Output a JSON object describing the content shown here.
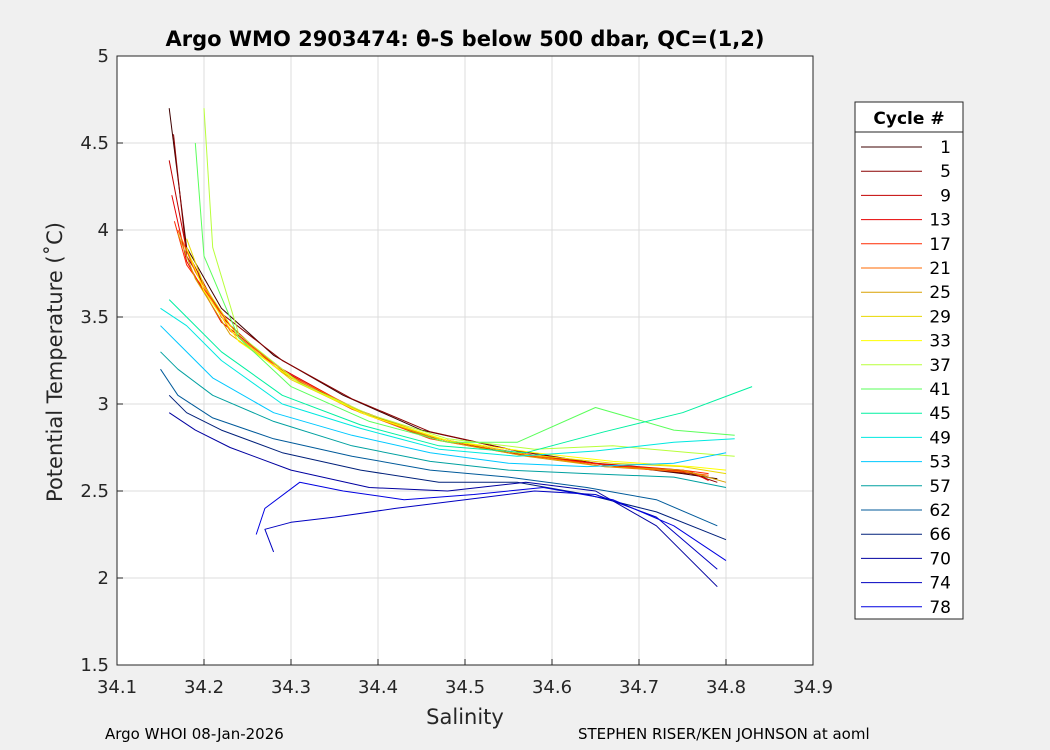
{
  "chart_data": {
    "type": "line",
    "title": "Argo WMO 2903474: θ-S below 500 dbar,  QC=(1,2)",
    "xlabel": "Salinity",
    "ylabel": "Potential Temperature (˚C)",
    "xlim": [
      34.1,
      34.9
    ],
    "ylim": [
      1.5,
      5.0
    ],
    "xticks": [
      "34.1",
      "34.2",
      "34.3",
      "34.4",
      "34.5",
      "34.6",
      "34.7",
      "34.8",
      "34.9"
    ],
    "yticks": [
      "1.5",
      "2",
      "2.5",
      "3",
      "3.5",
      "4",
      "4.5",
      "5"
    ],
    "grid": true,
    "legend": {
      "title": "Cycle #",
      "location": "right-outside",
      "entries": [
        "1",
        "5",
        "9",
        "13",
        "17",
        "21",
        "25",
        "29",
        "33",
        "37",
        "41",
        "45",
        "49",
        "53",
        "57",
        "62",
        "66",
        "70",
        "74",
        "78"
      ],
      "colors": [
        "#3d0000",
        "#8a0000",
        "#c20000",
        "#e60000",
        "#ff2a00",
        "#ff6a00",
        "#d9a000",
        "#e8d800",
        "#ffff00",
        "#b8ff3a",
        "#5aff5a",
        "#00f0a0",
        "#00e8e0",
        "#00c8ff",
        "#00a0a0",
        "#005a9a",
        "#00207a",
        "#0000a0",
        "#0000c0",
        "#0000e0"
      ]
    },
    "series": [
      {
        "name": "1",
        "x": [
          34.16,
          34.18,
          34.22,
          34.28,
          34.36,
          34.45,
          34.55,
          34.65,
          34.75,
          34.79
        ],
        "y": [
          4.7,
          3.9,
          3.55,
          3.28,
          3.05,
          2.85,
          2.74,
          2.66,
          2.6,
          2.57
        ]
      },
      {
        "name": "5",
        "x": [
          34.165,
          34.18,
          34.22,
          34.29,
          34.37,
          34.46,
          34.56,
          34.66,
          34.76,
          34.79
        ],
        "y": [
          4.55,
          3.85,
          3.52,
          3.25,
          3.03,
          2.84,
          2.73,
          2.65,
          2.6,
          2.55
        ]
      },
      {
        "name": "9",
        "x": [
          34.16,
          34.18,
          34.22,
          34.28,
          34.36,
          34.45,
          34.55,
          34.65,
          34.75,
          34.78
        ],
        "y": [
          4.4,
          3.88,
          3.5,
          3.22,
          3.0,
          2.82,
          2.72,
          2.66,
          2.62,
          2.58
        ]
      },
      {
        "name": "13",
        "x": [
          34.163,
          34.18,
          34.22,
          34.29,
          34.37,
          34.46,
          34.56,
          34.66,
          34.76,
          34.78
        ],
        "y": [
          4.2,
          3.82,
          3.47,
          3.2,
          2.98,
          2.81,
          2.72,
          2.65,
          2.61,
          2.56
        ]
      },
      {
        "name": "17",
        "x": [
          34.166,
          34.18,
          34.23,
          34.29,
          34.37,
          34.46,
          34.56,
          34.66,
          34.75,
          34.78
        ],
        "y": [
          4.05,
          3.8,
          3.45,
          3.18,
          2.97,
          2.8,
          2.71,
          2.65,
          2.62,
          2.6
        ]
      },
      {
        "name": "21",
        "x": [
          34.17,
          34.19,
          34.23,
          34.3,
          34.38,
          34.47,
          34.57,
          34.66,
          34.75,
          34.78
        ],
        "y": [
          4.0,
          3.76,
          3.42,
          3.16,
          2.96,
          2.8,
          2.71,
          2.64,
          2.61,
          2.59
        ]
      },
      {
        "name": "25",
        "x": [
          34.17,
          34.19,
          34.23,
          34.3,
          34.38,
          34.47,
          34.57,
          34.66,
          34.75,
          34.8
        ],
        "y": [
          3.98,
          3.72,
          3.4,
          3.15,
          2.95,
          2.79,
          2.7,
          2.64,
          2.62,
          2.55
        ]
      },
      {
        "name": "29",
        "x": [
          34.18,
          34.2,
          34.24,
          34.3,
          34.38,
          34.47,
          34.57,
          34.67,
          34.75,
          34.8
        ],
        "y": [
          3.95,
          3.68,
          3.38,
          3.14,
          2.95,
          2.8,
          2.71,
          2.66,
          2.64,
          2.6
        ]
      },
      {
        "name": "33",
        "x": [
          34.18,
          34.2,
          34.24,
          34.31,
          34.39,
          34.48,
          34.58,
          34.67,
          34.76,
          34.8
        ],
        "y": [
          3.9,
          3.65,
          3.36,
          3.12,
          2.93,
          2.79,
          2.72,
          2.67,
          2.64,
          2.62
        ]
      },
      {
        "name": "37",
        "x": [
          34.2,
          34.21,
          34.24,
          34.31,
          34.39,
          34.48,
          34.58,
          34.67,
          34.76,
          34.81
        ],
        "y": [
          4.7,
          3.9,
          3.4,
          3.12,
          2.94,
          2.8,
          2.74,
          2.76,
          2.72,
          2.7
        ]
      },
      {
        "name": "41",
        "x": [
          34.19,
          34.2,
          34.24,
          34.3,
          34.39,
          34.48,
          34.56,
          34.65,
          34.74,
          34.81
        ],
        "y": [
          4.5,
          3.85,
          3.38,
          3.1,
          2.9,
          2.78,
          2.78,
          2.98,
          2.85,
          2.82
        ]
      },
      {
        "name": "45",
        "x": [
          34.16,
          34.18,
          34.22,
          34.29,
          34.38,
          34.47,
          34.57,
          34.66,
          34.75,
          34.83
        ],
        "y": [
          3.6,
          3.5,
          3.3,
          3.05,
          2.88,
          2.76,
          2.72,
          2.84,
          2.95,
          3.1
        ]
      },
      {
        "name": "49",
        "x": [
          34.15,
          34.18,
          34.22,
          34.29,
          34.38,
          34.47,
          34.56,
          34.65,
          34.74,
          34.81
        ],
        "y": [
          3.55,
          3.45,
          3.25,
          3.0,
          2.86,
          2.74,
          2.7,
          2.73,
          2.78,
          2.8
        ]
      },
      {
        "name": "53",
        "x": [
          34.15,
          34.17,
          34.21,
          34.28,
          34.37,
          34.46,
          34.55,
          34.64,
          34.74,
          34.8
        ],
        "y": [
          3.45,
          3.35,
          3.15,
          2.95,
          2.82,
          2.72,
          2.66,
          2.64,
          2.66,
          2.72
        ]
      },
      {
        "name": "57",
        "x": [
          34.15,
          34.17,
          34.21,
          34.28,
          34.37,
          34.46,
          34.55,
          34.64,
          34.74,
          34.8
        ],
        "y": [
          3.3,
          3.2,
          3.05,
          2.9,
          2.76,
          2.67,
          2.62,
          2.6,
          2.58,
          2.52
        ]
      },
      {
        "name": "62",
        "x": [
          34.15,
          34.17,
          34.21,
          34.28,
          34.37,
          34.46,
          34.55,
          34.64,
          34.72,
          34.79
        ],
        "y": [
          3.2,
          3.05,
          2.92,
          2.8,
          2.7,
          2.62,
          2.58,
          2.52,
          2.45,
          2.3
        ]
      },
      {
        "name": "66",
        "x": [
          34.16,
          34.18,
          34.22,
          34.29,
          34.38,
          34.47,
          34.56,
          34.64,
          34.72,
          34.8
        ],
        "y": [
          3.05,
          2.95,
          2.85,
          2.72,
          2.62,
          2.55,
          2.55,
          2.48,
          2.38,
          2.22
        ]
      },
      {
        "name": "70",
        "x": [
          34.16,
          34.19,
          34.23,
          34.3,
          34.39,
          34.48,
          34.57,
          34.65,
          34.72,
          34.79
        ],
        "y": [
          2.95,
          2.85,
          2.75,
          2.62,
          2.52,
          2.5,
          2.55,
          2.5,
          2.3,
          1.95
        ]
      },
      {
        "name": "74",
        "x": [
          34.28,
          34.27,
          34.3,
          34.35,
          34.42,
          34.5,
          34.58,
          34.65,
          34.72,
          34.79
        ],
        "y": [
          2.15,
          2.28,
          2.32,
          2.35,
          2.4,
          2.45,
          2.5,
          2.48,
          2.35,
          2.05
        ]
      },
      {
        "name": "78",
        "x": [
          34.26,
          34.27,
          34.31,
          34.36,
          34.43,
          34.51,
          34.59,
          34.67,
          34.74,
          34.8
        ],
        "y": [
          2.25,
          2.4,
          2.55,
          2.5,
          2.45,
          2.48,
          2.52,
          2.45,
          2.3,
          2.1
        ]
      }
    ]
  },
  "footer": {
    "left": "Argo WHOI 08-Jan-2026",
    "right": "STEPHEN RISER/KEN JOHNSON at aoml"
  }
}
